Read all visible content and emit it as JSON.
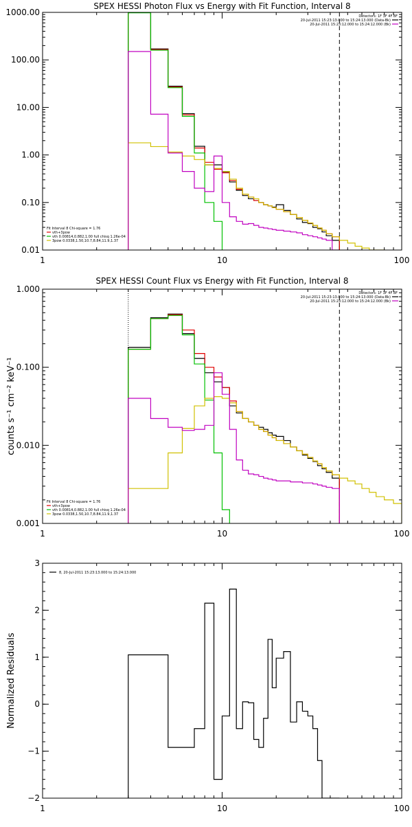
{
  "chart_data": [
    {
      "type": "line",
      "title": "SPEX HESSI Photon Flux vs Energy with Fit Function, Interval 8",
      "xlabel": "",
      "ylabel": "",
      "xscale": "log",
      "yscale": "log",
      "xlim": [
        1,
        100
      ],
      "ylim": [
        0.01,
        1000
      ],
      "xticks": [
        "1",
        "10",
        "100"
      ],
      "yticks": [
        "0.01",
        "0.10",
        "1.00",
        "10.00",
        "100.00",
        "1000.00"
      ],
      "xtick_values": [
        1,
        10,
        100
      ],
      "ytick_values": [
        0.01,
        0.1,
        1,
        10,
        100,
        1000
      ],
      "vlines": [
        {
          "x": 45,
          "style": "dashed"
        },
        {
          "x": 3,
          "style": "dotted",
          "color": "#f0a000"
        }
      ],
      "header_text": [
        "Detectors: 1F 3F 4F 8F",
        "20-Jul-2011 15:23:13.000 to 15:24:13.000 (Data-Bk)",
        "20-Jul-2011 15:23:12.000 to 15:24:12.000 (Bk)"
      ],
      "header_swatch_colors": [
        "#000000",
        "#c000c0"
      ],
      "legend": [
        {
          "text": "Fit Interval 8   Chi-square = 1.76",
          "color": ""
        },
        {
          "text": "vth+3pow",
          "color": "#e00000"
        },
        {
          "text": "vth 0.00814,0.882,1.00   full chisq 1.26e-04",
          "color": "#00c000"
        },
        {
          "text": "3pow 0.0338,1.50,10.7,8.84,11.9,1.37",
          "color": "#d0c000"
        }
      ],
      "series": [
        {
          "color": "#000000",
          "edges": [
            3,
            4,
            5,
            6,
            7,
            8,
            9,
            10,
            11,
            12,
            13,
            14,
            15,
            16,
            17,
            18,
            19,
            20,
            22,
            24,
            26,
            28,
            30,
            32,
            34,
            36,
            38,
            41,
            45
          ],
          "values": [
            1000,
            170,
            28,
            7.4,
            1.52,
            0.62,
            0.62,
            0.44,
            0.27,
            0.18,
            0.14,
            0.12,
            0.11,
            0.1,
            0.09,
            0.085,
            0.08,
            0.09,
            0.068,
            0.056,
            0.045,
            0.038,
            0.036,
            0.03,
            0.028,
            0.024,
            0.02,
            0.016
          ]
        },
        {
          "color": "#e00000",
          "edges": [
            3,
            4,
            5,
            6,
            7,
            8,
            9,
            10,
            11,
            12,
            13,
            14,
            15,
            16,
            17,
            18,
            19,
            20,
            22,
            24,
            26,
            28,
            30,
            32,
            34,
            36,
            38,
            41,
            45
          ],
          "values": [
            1000,
            165,
            27,
            7.0,
            1.4,
            0.7,
            0.5,
            0.42,
            0.29,
            0.19,
            0.15,
            0.13,
            0.11,
            0.1,
            0.09,
            0.085,
            0.078,
            0.072,
            0.064,
            0.056,
            0.048,
            0.042,
            0.037,
            0.033,
            0.029,
            0.026,
            0.022,
            0.019
          ]
        },
        {
          "color": "#00c000",
          "edges": [
            3,
            4,
            5,
            6,
            7,
            8,
            9,
            10
          ],
          "values": [
            980,
            160,
            26,
            6.5,
            1.1,
            0.1,
            0.04
          ]
        },
        {
          "color": "#d0c000",
          "edges": [
            3,
            4,
            5,
            6,
            7,
            8,
            9,
            10,
            11,
            12,
            13,
            14,
            15,
            16,
            17,
            18,
            19,
            20,
            22,
            24,
            26,
            28,
            30,
            32,
            34,
            36,
            38,
            41,
            45,
            50,
            55,
            60,
            66,
            72,
            80
          ],
          "values": [
            1.8,
            1.5,
            1.15,
            0.95,
            0.8,
            0.62,
            0.52,
            0.45,
            0.31,
            0.2,
            0.15,
            0.13,
            0.12,
            0.1,
            0.09,
            0.085,
            0.078,
            0.072,
            0.064,
            0.056,
            0.048,
            0.042,
            0.037,
            0.033,
            0.029,
            0.026,
            0.022,
            0.019,
            0.016,
            0.014,
            0.012,
            0.011,
            0.01,
            0.0095
          ]
        },
        {
          "color": "#c000c0",
          "edges": [
            3,
            4,
            5,
            6,
            7,
            8,
            9,
            10,
            11,
            12,
            13,
            14,
            15,
            16,
            17,
            18,
            19,
            20,
            22,
            24,
            26,
            28,
            30,
            32,
            34,
            36,
            38,
            41,
            45
          ],
          "values": [
            150,
            7.2,
            1.1,
            0.45,
            0.2,
            0.17,
            0.95,
            0.1,
            0.05,
            0.04,
            0.035,
            0.036,
            0.033,
            0.03,
            0.029,
            0.028,
            0.027,
            0.026,
            0.025,
            0.024,
            0.023,
            0.021,
            0.02,
            0.019,
            0.018,
            0.017,
            0.016,
            0.0095
          ]
        }
      ]
    },
    {
      "type": "line",
      "title": "SPEX HESSI Count Flux vs Energy with Fit Function, Interval 8",
      "xlabel": "",
      "ylabel": "counts s⁻¹ cm⁻² keV⁻¹",
      "xscale": "log",
      "yscale": "log",
      "xlim": [
        1,
        100
      ],
      "ylim": [
        0.001,
        1
      ],
      "xticks": [
        "1",
        "10",
        "100"
      ],
      "yticks": [
        "0.001",
        "0.010",
        "0.100",
        "1.000"
      ],
      "xtick_values": [
        1,
        10,
        100
      ],
      "ytick_values": [
        0.001,
        0.01,
        0.1,
        1
      ],
      "vlines": [
        {
          "x": 45,
          "style": "dashed"
        },
        {
          "x": 3,
          "style": "dotted"
        }
      ],
      "header_text": [
        "Detectors: 1F 3F 4F 8F",
        "20-Jul-2011 15:23:13.000 to 15:24:13.000 (Data-Bk)",
        "20-Jul-2011 15:23:12.000 to 15:24:12.000 (Bk)"
      ],
      "header_swatch_colors": [
        "#000000",
        "#c000c0"
      ],
      "legend": [
        {
          "text": "Fit Interval 8   Chi-square = 1.76",
          "color": ""
        },
        {
          "text": "vth+3pow",
          "color": "#e00000"
        },
        {
          "text": "vth 0.00814,0.882,1.00   full chisq 1.26e-04",
          "color": "#00c000"
        },
        {
          "text": "3pow 0.0338,1.50,10.7,8.84,11.9,1.37",
          "color": "#d0c000"
        }
      ],
      "series": [
        {
          "color": "#000000",
          "edges": [
            3,
            4,
            5,
            6,
            7,
            8,
            9,
            10,
            11,
            12,
            13,
            14,
            15,
            16,
            17,
            18,
            19,
            20,
            22,
            24,
            26,
            28,
            30,
            32,
            34,
            36,
            38,
            41,
            45
          ],
          "values": [
            0.18,
            0.43,
            0.48,
            0.27,
            0.13,
            0.085,
            0.065,
            0.055,
            0.032,
            0.026,
            0.022,
            0.02,
            0.018,
            0.017,
            0.016,
            0.0145,
            0.0135,
            0.013,
            0.0115,
            0.0095,
            0.0085,
            0.0075,
            0.0068,
            0.0062,
            0.0055,
            0.005,
            0.0045,
            0.0038
          ]
        },
        {
          "color": "#e00000",
          "edges": [
            3,
            4,
            5,
            6,
            7,
            8,
            9,
            10,
            11,
            12,
            13,
            14,
            15,
            16,
            17,
            18,
            19,
            20,
            22,
            24,
            26,
            28,
            30,
            32,
            34,
            36,
            38,
            41,
            45
          ],
          "values": [
            0.17,
            0.42,
            0.47,
            0.3,
            0.15,
            0.1,
            0.075,
            0.055,
            0.037,
            0.027,
            0.022,
            0.02,
            0.018,
            0.016,
            0.015,
            0.0135,
            0.0125,
            0.0115,
            0.0105,
            0.0095,
            0.0085,
            0.0077,
            0.007,
            0.0063,
            0.0058,
            0.0052,
            0.0047,
            0.0042
          ]
        },
        {
          "color": "#00c000",
          "edges": [
            3,
            4,
            5,
            6,
            7,
            8,
            9,
            10,
            11
          ],
          "values": [
            0.17,
            0.42,
            0.46,
            0.26,
            0.11,
            0.038,
            0.008,
            0.0015
          ]
        },
        {
          "color": "#d0c000",
          "edges": [
            3,
            4,
            5,
            6,
            7,
            8,
            9,
            10,
            11,
            12,
            13,
            14,
            15,
            16,
            17,
            18,
            19,
            20,
            22,
            24,
            26,
            28,
            30,
            32,
            34,
            36,
            38,
            41,
            45,
            50,
            55,
            60,
            66,
            72,
            80,
            90,
            100
          ],
          "values": [
            0.0028,
            0.0028,
            0.008,
            0.0165,
            0.032,
            0.04,
            0.042,
            0.04,
            0.035,
            0.027,
            0.022,
            0.02,
            0.018,
            0.016,
            0.015,
            0.0135,
            0.0125,
            0.0115,
            0.0105,
            0.0095,
            0.0085,
            0.0077,
            0.007,
            0.0063,
            0.0058,
            0.0052,
            0.0047,
            0.0042,
            0.0038,
            0.0035,
            0.0032,
            0.0028,
            0.0025,
            0.0022,
            0.002,
            0.0018
          ]
        },
        {
          "color": "#c000c0",
          "edges": [
            3,
            4,
            5,
            6,
            7,
            8,
            9,
            10,
            11,
            12,
            13,
            14,
            15,
            16,
            17,
            18,
            19,
            20,
            22,
            24,
            26,
            28,
            30,
            32,
            34,
            36,
            38,
            41,
            45
          ],
          "values": [
            0.04,
            0.022,
            0.017,
            0.0155,
            0.016,
            0.018,
            0.085,
            0.045,
            0.016,
            0.0065,
            0.0048,
            0.0043,
            0.0042,
            0.004,
            0.0038,
            0.0037,
            0.0036,
            0.0035,
            0.0035,
            0.0034,
            0.0034,
            0.0033,
            0.0033,
            0.0032,
            0.0031,
            0.003,
            0.0029,
            0.0028
          ]
        }
      ]
    },
    {
      "type": "line",
      "title": "",
      "xlabel": "",
      "ylabel": "Normalized Residuals",
      "xscale": "log",
      "yscale": "linear",
      "xlim": [
        1,
        100
      ],
      "ylim": [
        -2,
        3
      ],
      "xticks": [
        "1",
        "10",
        "100"
      ],
      "yticks": [
        "−2",
        "−1",
        "0",
        "1",
        "2",
        "3"
      ],
      "xtick_values": [
        1,
        10,
        100
      ],
      "ytick_values": [
        -2,
        -1,
        0,
        1,
        2,
        3
      ],
      "legend": [
        {
          "text": "8, 20-Jul-2011 15:23:13.000 to 15:24:13.000",
          "color": "#000000"
        }
      ],
      "series": [
        {
          "color": "#000000",
          "edges": [
            3,
            4,
            5,
            6,
            7,
            8,
            9,
            10,
            11,
            12,
            13,
            14,
            15,
            16,
            17,
            18,
            19,
            20,
            22,
            24,
            26,
            28,
            30,
            32,
            34,
            36,
            38,
            41,
            45
          ],
          "values": [
            1.05,
            1.05,
            -0.92,
            -0.92,
            -0.52,
            2.15,
            -1.6,
            -0.25,
            2.45,
            -0.52,
            0.05,
            0.03,
            -0.75,
            -0.92,
            -0.3,
            1.38,
            0.35,
            0.98,
            1.12,
            -0.38,
            0.05,
            -0.15,
            -0.25,
            -0.52,
            -1.2,
            -2.0,
            -2.0,
            -2.0
          ]
        }
      ]
    }
  ]
}
